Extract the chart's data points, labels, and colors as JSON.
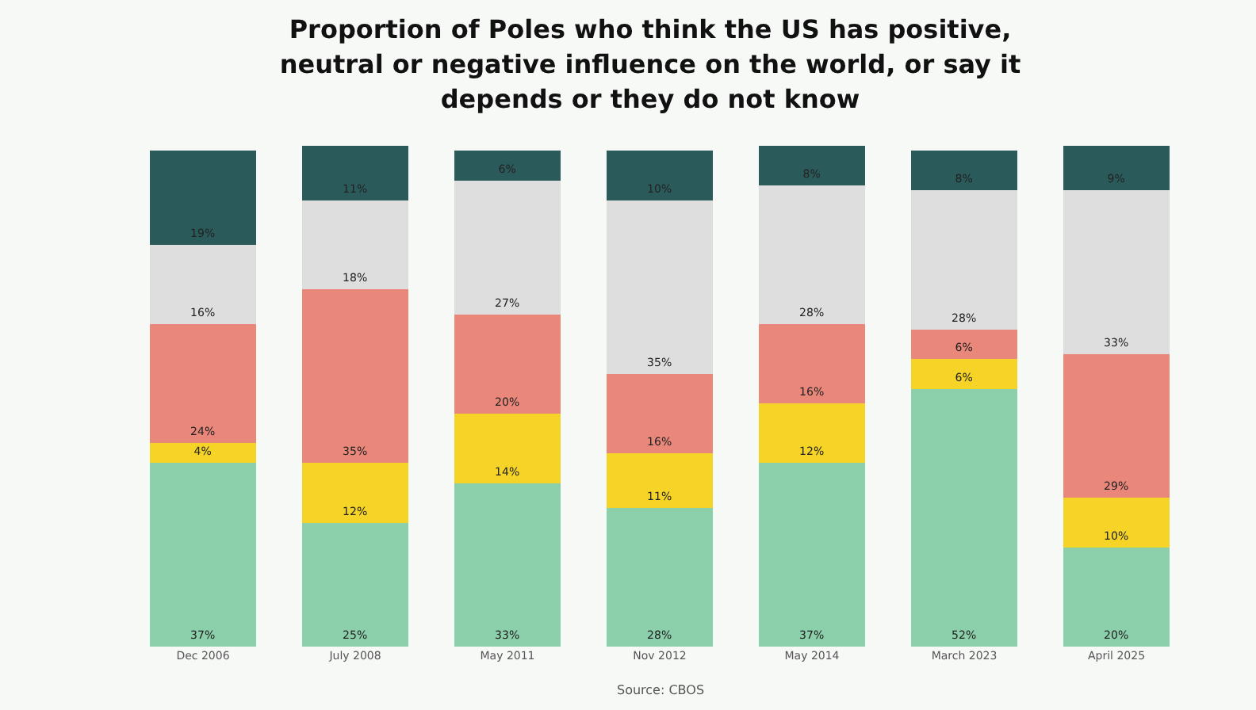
{
  "chart_data": {
    "type": "bar",
    "stacked": true,
    "title": "Proportion of Poles who think the US has positive, neutral or negative influence on the world, or say it depends or they do not know",
    "categories": [
      "Dec 2006",
      "July 2008",
      "May 2011",
      "Nov 2012",
      "May 2014",
      "March 2023",
      "April 2025"
    ],
    "series": [
      {
        "color": "#8ccfab",
        "values": [
          37,
          25,
          33,
          28,
          37,
          52,
          20
        ],
        "value_labels": [
          "37%",
          "25%",
          "33%",
          "28%",
          "37%",
          "52%",
          "20%"
        ]
      },
      {
        "color": "#f5d327",
        "values": [
          4,
          12,
          14,
          11,
          12,
          6,
          10
        ],
        "value_labels": [
          "4%",
          "12%",
          "14%",
          "11%",
          "12%",
          "6%",
          "10%"
        ]
      },
      {
        "color": "#e8877a",
        "values": [
          24,
          35,
          20,
          16,
          16,
          6,
          29
        ],
        "value_labels": [
          "24%",
          "35%",
          "20%",
          "16%",
          "16%",
          "6%",
          "29%"
        ]
      },
      {
        "color": "#dedede",
        "values": [
          16,
          18,
          27,
          35,
          28,
          28,
          33
        ],
        "value_labels": [
          "16%",
          "18%",
          "27%",
          "35%",
          "28%",
          "28%",
          "33%"
        ]
      },
      {
        "color": "#2b5a5b",
        "values": [
          19,
          11,
          6,
          10,
          8,
          8,
          9
        ],
        "value_labels": [
          "19%",
          "11%",
          "6%",
          "10%",
          "8%",
          "8%",
          "9%"
        ]
      }
    ],
    "ylim": [
      0,
      101
    ],
    "grid": false,
    "annotations": [
      "Source: CBOS"
    ]
  }
}
